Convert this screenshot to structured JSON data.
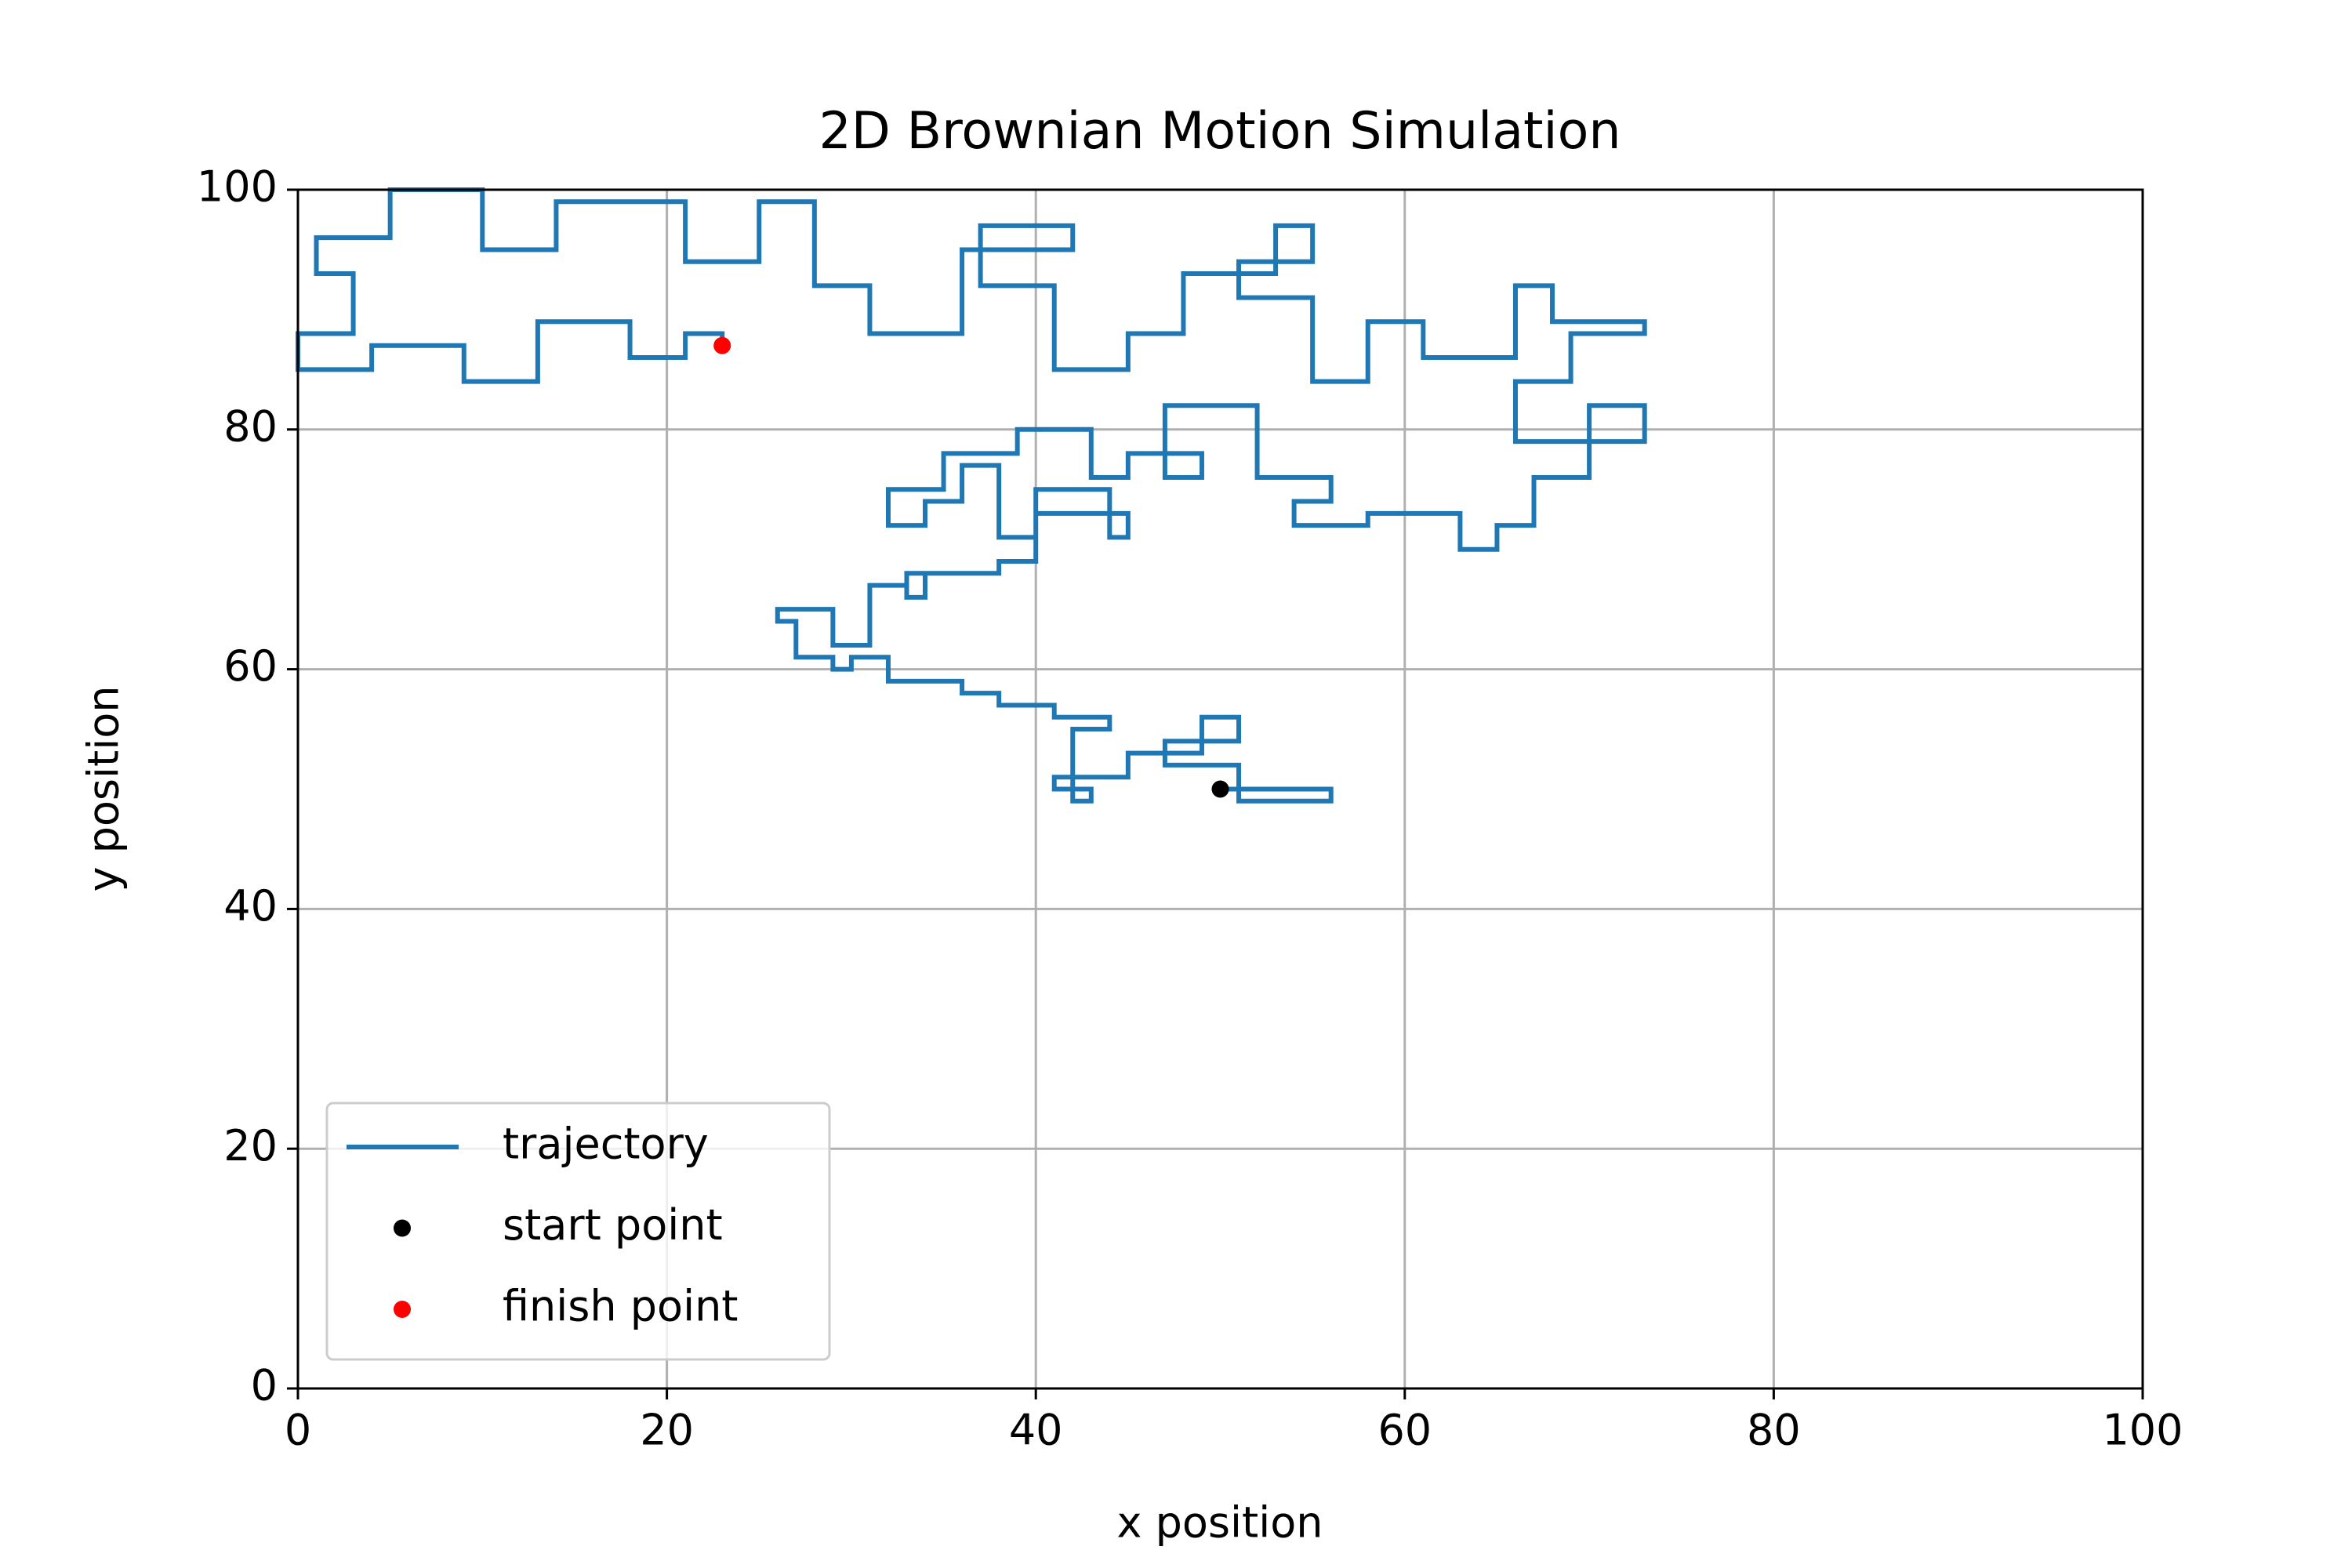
{
  "chart_data": {
    "type": "line",
    "title": "2D Brownian Motion Simulation",
    "xlabel": "x position",
    "ylabel": "y position",
    "xlim": [
      0,
      100
    ],
    "ylim": [
      0,
      100
    ],
    "xticks": [
      0,
      20,
      40,
      60,
      80,
      100
    ],
    "yticks": [
      0,
      20,
      40,
      60,
      80,
      100
    ],
    "grid": true,
    "legend": "lower left",
    "series": [
      {
        "name": "trajectory",
        "color": "#1f77b4",
        "mode": "line",
        "x": [
          50,
          56,
          56,
          51,
          51,
          47,
          47,
          51,
          51,
          49,
          49,
          45,
          45,
          41,
          41,
          43,
          43,
          42,
          42,
          44,
          44,
          41,
          41,
          38,
          38,
          36,
          36,
          32,
          32,
          30,
          30,
          29,
          29,
          27,
          27,
          26,
          26,
          29,
          29,
          31,
          31,
          33,
          33,
          34,
          34,
          33,
          33,
          38,
          38,
          40,
          40,
          45,
          45,
          44,
          44,
          40,
          40,
          38,
          38,
          36,
          36,
          34,
          34,
          32,
          32,
          35,
          35,
          39,
          39,
          43,
          43,
          45,
          45,
          49,
          49,
          47,
          47,
          52,
          52,
          56,
          56,
          54,
          54,
          58,
          58,
          63,
          63,
          65,
          65,
          67,
          67,
          70,
          70,
          73,
          73,
          66,
          66,
          69,
          69,
          73,
          73,
          68,
          68,
          66,
          66,
          61,
          61,
          58,
          58,
          55,
          55,
          51,
          51,
          55,
          55,
          53,
          53,
          48,
          48,
          45,
          45,
          41,
          41,
          37,
          37,
          42,
          42,
          36,
          36,
          31,
          31,
          28,
          28,
          25,
          25,
          21,
          21,
          14,
          14,
          10,
          10,
          5,
          5,
          1,
          1,
          3,
          3,
          0,
          0,
          4,
          4,
          9,
          9,
          13,
          13,
          18,
          18,
          21,
          21,
          23,
          23
        ],
        "y": [
          50,
          50,
          49,
          49,
          52,
          52,
          54,
          54,
          56,
          56,
          53,
          53,
          51,
          51,
          50,
          50,
          49,
          49,
          55,
          55,
          56,
          56,
          57,
          57,
          58,
          58,
          59,
          59,
          61,
          61,
          60,
          60,
          61,
          61,
          64,
          64,
          65,
          65,
          62,
          62,
          67,
          67,
          68,
          68,
          66,
          66,
          68,
          68,
          69,
          69,
          73,
          73,
          71,
          71,
          75,
          75,
          71,
          71,
          77,
          77,
          74,
          74,
          72,
          72,
          75,
          75,
          78,
          78,
          80,
          80,
          76,
          76,
          78,
          78,
          76,
          76,
          82,
          82,
          76,
          76,
          74,
          74,
          72,
          72,
          73,
          73,
          70,
          70,
          72,
          72,
          76,
          76,
          82,
          82,
          79,
          79,
          84,
          84,
          88,
          88,
          89,
          89,
          92,
          92,
          86,
          86,
          89,
          89,
          84,
          84,
          91,
          91,
          94,
          94,
          97,
          97,
          93,
          93,
          88,
          88,
          85,
          85,
          92,
          92,
          97,
          97,
          95,
          95,
          88,
          88,
          92,
          92,
          99,
          99,
          94,
          94,
          99,
          99,
          95,
          95,
          100,
          100,
          96,
          96,
          93,
          93,
          88,
          88,
          85,
          85,
          87,
          87,
          84,
          84,
          89,
          89,
          86,
          86,
          88,
          88,
          87
        ]
      },
      {
        "name": "start point",
        "color": "#000000",
        "mode": "markers",
        "x": [
          50
        ],
        "y": [
          50
        ]
      },
      {
        "name": "finish point",
        "color": "#ff0000",
        "mode": "markers",
        "x": [
          23
        ],
        "y": [
          87
        ]
      }
    ]
  }
}
